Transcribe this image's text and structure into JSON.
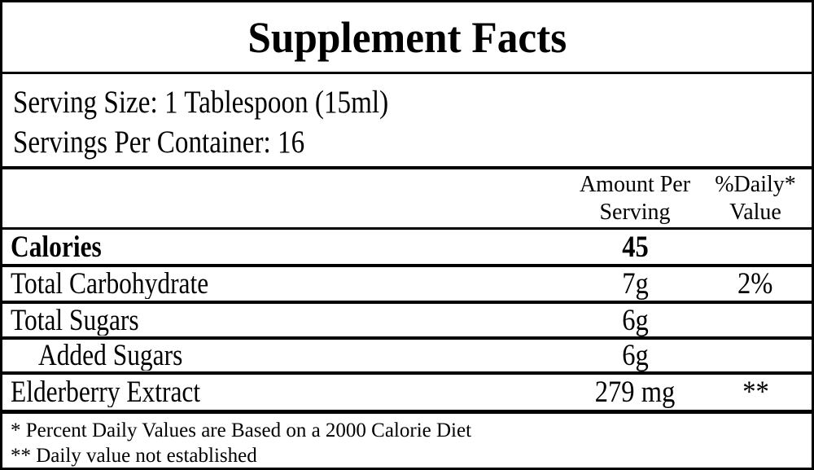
{
  "label": {
    "title": "Supplement Facts",
    "serving": {
      "size": "Serving Size: 1 Tablespoon (15ml)",
      "per_container": "Servings Per Container: 16"
    },
    "header": {
      "amount_line1": "Amount Per",
      "amount_line2": "Serving",
      "daily_line1": "%Daily*",
      "daily_line2": "Value"
    },
    "rows": [
      {
        "name": "Calories",
        "amount": "45",
        "daily": ""
      },
      {
        "name": "Total Carbohydrate",
        "amount": "7g",
        "daily": "2%"
      },
      {
        "name": "Total Sugars",
        "amount": "6g",
        "daily": ""
      },
      {
        "name": "Added Sugars",
        "amount": "6g",
        "daily": ""
      },
      {
        "name": "Elderberry Extract",
        "amount": "279 mg",
        "daily": "**"
      }
    ],
    "footnotes": {
      "daily_value_note": "* Percent Daily Values are Based on a 2000 Calorie Diet",
      "not_established_note": "** Daily value not established"
    },
    "colors": {
      "text": "#000000",
      "background": "#ffffff",
      "border": "#000000"
    }
  }
}
